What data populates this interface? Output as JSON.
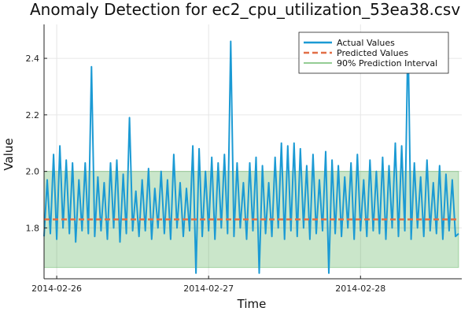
{
  "chart_data": {
    "type": "line",
    "title": "Anomaly Detection for ec2_cpu_utilization_53ea38.csv",
    "xlabel": "Time",
    "ylabel": "Value",
    "x_range": [
      "2014-02-25 22:00",
      "2014-02-28 16:00"
    ],
    "ylim": [
      1.62,
      2.52
    ],
    "x_ticks": [
      "2014-02-26",
      "2014-02-27",
      "2014-02-28"
    ],
    "y_ticks": [
      "1.8",
      "2.0",
      "2.2",
      "2.4"
    ],
    "grid": true,
    "legend_position": "top-right",
    "legend": [
      "Actual Values",
      "Predicted Values",
      "90% Prediction Interval"
    ],
    "colors": {
      "actual": "#1b9ad4",
      "predicted": "#e26f46",
      "interval": "#2a9a2a"
    },
    "predicted_value": 1.83,
    "prediction_interval": [
      1.66,
      2.0
    ],
    "series": [
      {
        "name": "Actual Values",
        "points": [
          [
            "2014-02-25 22:00",
            1.77
          ],
          [
            "2014-02-25 22:30",
            1.97
          ],
          [
            "2014-02-25 23:00",
            1.78
          ],
          [
            "2014-02-25 23:30",
            2.06
          ],
          [
            "2014-02-26 00:00",
            1.76
          ],
          [
            "2014-02-26 00:30",
            2.09
          ],
          [
            "2014-02-26 01:00",
            1.8
          ],
          [
            "2014-02-26 01:30",
            2.04
          ],
          [
            "2014-02-26 02:00",
            1.78
          ],
          [
            "2014-02-26 02:30",
            2.03
          ],
          [
            "2014-02-26 03:00",
            1.75
          ],
          [
            "2014-02-26 03:30",
            1.97
          ],
          [
            "2014-02-26 04:00",
            1.79
          ],
          [
            "2014-02-26 04:30",
            2.03
          ],
          [
            "2014-02-26 05:00",
            1.78
          ],
          [
            "2014-02-26 05:30",
            2.37
          ],
          [
            "2014-02-26 06:00",
            1.77
          ],
          [
            "2014-02-26 06:30",
            1.98
          ],
          [
            "2014-02-26 07:00",
            1.79
          ],
          [
            "2014-02-26 07:30",
            1.96
          ],
          [
            "2014-02-26 08:00",
            1.76
          ],
          [
            "2014-02-26 08:30",
            2.03
          ],
          [
            "2014-02-26 09:00",
            1.8
          ],
          [
            "2014-02-26 09:30",
            2.04
          ],
          [
            "2014-02-26 10:00",
            1.75
          ],
          [
            "2014-02-26 10:30",
            1.99
          ],
          [
            "2014-02-26 11:00",
            1.78
          ],
          [
            "2014-02-26 11:30",
            2.19
          ],
          [
            "2014-02-26 12:00",
            1.79
          ],
          [
            "2014-02-26 12:30",
            1.93
          ],
          [
            "2014-02-26 13:00",
            1.77
          ],
          [
            "2014-02-26 13:30",
            1.97
          ],
          [
            "2014-02-26 14:00",
            1.79
          ],
          [
            "2014-02-26 14:30",
            2.01
          ],
          [
            "2014-02-26 15:00",
            1.76
          ],
          [
            "2014-02-26 15:30",
            1.94
          ],
          [
            "2014-02-26 16:00",
            1.8
          ],
          [
            "2014-02-26 16:30",
            2.0
          ],
          [
            "2014-02-26 17:00",
            1.78
          ],
          [
            "2014-02-26 17:30",
            1.97
          ],
          [
            "2014-02-26 18:00",
            1.76
          ],
          [
            "2014-02-26 18:30",
            2.06
          ],
          [
            "2014-02-26 19:00",
            1.8
          ],
          [
            "2014-02-26 19:30",
            1.96
          ],
          [
            "2014-02-26 20:00",
            1.77
          ],
          [
            "2014-02-26 20:30",
            1.94
          ],
          [
            "2014-02-26 21:00",
            1.79
          ],
          [
            "2014-02-26 21:30",
            2.09
          ],
          [
            "2014-02-26 22:00",
            1.64
          ],
          [
            "2014-02-26 22:30",
            2.08
          ],
          [
            "2014-02-26 23:00",
            1.77
          ],
          [
            "2014-02-26 23:30",
            2.0
          ],
          [
            "2014-02-27 00:00",
            1.79
          ],
          [
            "2014-02-27 00:30",
            2.05
          ],
          [
            "2014-02-27 01:00",
            1.76
          ],
          [
            "2014-02-27 01:30",
            2.03
          ],
          [
            "2014-02-27 02:00",
            1.8
          ],
          [
            "2014-02-27 02:30",
            2.06
          ],
          [
            "2014-02-27 03:00",
            1.78
          ],
          [
            "2014-02-27 03:30",
            2.46
          ],
          [
            "2014-02-27 04:00",
            1.77
          ],
          [
            "2014-02-27 04:30",
            2.03
          ],
          [
            "2014-02-27 05:00",
            1.8
          ],
          [
            "2014-02-27 05:30",
            1.96
          ],
          [
            "2014-02-27 06:00",
            1.76
          ],
          [
            "2014-02-27 06:30",
            2.03
          ],
          [
            "2014-02-27 07:00",
            1.79
          ],
          [
            "2014-02-27 07:30",
            2.05
          ],
          [
            "2014-02-27 08:00",
            1.64
          ],
          [
            "2014-02-27 08:30",
            2.02
          ],
          [
            "2014-02-27 09:00",
            1.78
          ],
          [
            "2014-02-27 09:30",
            1.96
          ],
          [
            "2014-02-27 10:00",
            1.77
          ],
          [
            "2014-02-27 10:30",
            2.05
          ],
          [
            "2014-02-27 11:00",
            1.8
          ],
          [
            "2014-02-27 11:30",
            2.1
          ],
          [
            "2014-02-27 12:00",
            1.76
          ],
          [
            "2014-02-27 12:30",
            2.09
          ],
          [
            "2014-02-27 13:00",
            1.79
          ],
          [
            "2014-02-27 13:30",
            2.1
          ],
          [
            "2014-02-27 14:00",
            1.77
          ],
          [
            "2014-02-27 14:30",
            2.08
          ],
          [
            "2014-02-27 15:00",
            1.8
          ],
          [
            "2014-02-27 15:30",
            2.02
          ],
          [
            "2014-02-27 16:00",
            1.76
          ],
          [
            "2014-02-27 16:30",
            2.06
          ],
          [
            "2014-02-27 17:00",
            1.78
          ],
          [
            "2014-02-27 17:30",
            1.97
          ],
          [
            "2014-02-27 18:00",
            1.79
          ],
          [
            "2014-02-27 18:30",
            2.07
          ],
          [
            "2014-02-27 19:00",
            1.64
          ],
          [
            "2014-02-27 19:30",
            2.04
          ],
          [
            "2014-02-27 20:00",
            1.78
          ],
          [
            "2014-02-27 20:30",
            2.02
          ],
          [
            "2014-02-27 21:00",
            1.77
          ],
          [
            "2014-02-27 21:30",
            1.98
          ],
          [
            "2014-02-27 22:00",
            1.8
          ],
          [
            "2014-02-27 22:30",
            2.03
          ],
          [
            "2014-02-27 23:00",
            1.76
          ],
          [
            "2014-02-27 23:30",
            2.06
          ],
          [
            "2014-02-28 00:00",
            1.79
          ],
          [
            "2014-02-28 00:30",
            1.97
          ],
          [
            "2014-02-28 01:00",
            1.77
          ],
          [
            "2014-02-28 01:30",
            2.04
          ],
          [
            "2014-02-28 02:00",
            1.79
          ],
          [
            "2014-02-28 02:30",
            2.0
          ],
          [
            "2014-02-28 03:00",
            1.78
          ],
          [
            "2014-02-28 03:30",
            2.05
          ],
          [
            "2014-02-28 04:00",
            1.76
          ],
          [
            "2014-02-28 04:30",
            2.02
          ],
          [
            "2014-02-28 05:00",
            1.8
          ],
          [
            "2014-02-28 05:30",
            2.1
          ],
          [
            "2014-02-28 06:00",
            1.77
          ],
          [
            "2014-02-28 06:30",
            2.09
          ],
          [
            "2014-02-28 07:00",
            1.79
          ],
          [
            "2014-02-28 07:30",
            2.49
          ],
          [
            "2014-02-28 08:00",
            1.76
          ],
          [
            "2014-02-28 08:30",
            2.03
          ],
          [
            "2014-02-28 09:00",
            1.8
          ],
          [
            "2014-02-28 09:30",
            1.98
          ],
          [
            "2014-02-28 10:00",
            1.77
          ],
          [
            "2014-02-28 10:30",
            2.04
          ],
          [
            "2014-02-28 11:00",
            1.79
          ],
          [
            "2014-02-28 11:30",
            1.96
          ],
          [
            "2014-02-28 12:00",
            1.78
          ],
          [
            "2014-02-28 12:30",
            2.02
          ],
          [
            "2014-02-28 13:00",
            1.76
          ],
          [
            "2014-02-28 13:30",
            1.99
          ],
          [
            "2014-02-28 14:00",
            1.79
          ],
          [
            "2014-02-28 14:30",
            1.97
          ],
          [
            "2014-02-28 15:00",
            1.77
          ],
          [
            "2014-02-28 15:30",
            1.78
          ]
        ]
      }
    ]
  }
}
